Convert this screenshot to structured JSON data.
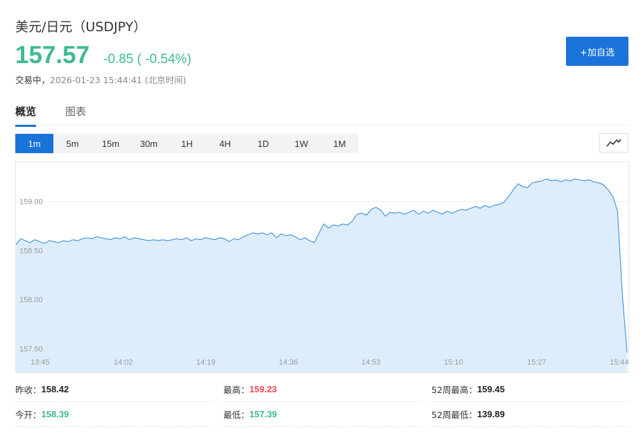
{
  "header": {
    "title": "美元/日元（USDJPY）",
    "price": "157.57",
    "change": "-0.85 ( -0.54%)",
    "status_label": "交易中，",
    "timestamp": "2026-01-23 15:44:41 (北京时间)",
    "add_button": "+加自选"
  },
  "tabs": [
    {
      "label": "概览",
      "active": true
    },
    {
      "label": "图表",
      "active": false
    }
  ],
  "periods": [
    {
      "label": "1m",
      "active": true
    },
    {
      "label": "5m",
      "active": false
    },
    {
      "label": "15m",
      "active": false
    },
    {
      "label": "30m",
      "active": false
    },
    {
      "label": "1H",
      "active": false
    },
    {
      "label": "4H",
      "active": false
    },
    {
      "label": "1D",
      "active": false
    },
    {
      "label": "1W",
      "active": false
    },
    {
      "label": "1M",
      "active": false
    }
  ],
  "chart_type_icon": "line-chart-icon",
  "colors": {
    "up": "#f0494d",
    "down": "#3dbb8c",
    "accent": "#1a73d9",
    "line": "#3b8fd9",
    "fill": "#deedfb"
  },
  "chart_data": {
    "type": "area",
    "y_ticks": [
      "159.00",
      "158.50",
      "158.00",
      "157.50"
    ],
    "y_tick_values": [
      159.0,
      158.5,
      158.0,
      157.5
    ],
    "x_ticks": [
      "13:45",
      "14:02",
      "14:19",
      "14:36",
      "14:53",
      "15:10",
      "15:27",
      "15:44"
    ],
    "ylim": [
      157.4,
      159.4
    ],
    "grid": true,
    "series": [
      {
        "values": [
          158.56,
          158.62,
          158.6,
          158.58,
          158.61,
          158.59,
          158.57,
          158.6,
          158.59,
          158.58,
          158.6,
          158.59,
          158.61,
          158.6,
          158.62,
          158.63,
          158.62,
          158.64,
          158.63,
          158.62,
          158.61,
          158.63,
          158.62,
          158.64,
          158.61,
          158.63,
          158.62,
          158.61,
          158.6,
          158.61,
          158.6,
          158.61,
          158.6,
          158.61,
          158.62,
          158.61,
          158.63,
          158.6,
          158.62,
          158.61,
          158.63,
          158.62,
          158.61,
          158.63,
          158.62,
          158.59,
          158.62,
          158.61,
          158.64,
          158.66,
          158.68,
          158.67,
          158.68,
          158.66,
          158.68,
          158.63,
          158.67,
          158.65,
          158.66,
          158.64,
          158.61,
          158.63,
          158.6,
          158.58,
          158.68,
          158.77,
          158.73,
          158.76,
          158.75,
          158.77,
          158.76,
          158.8,
          158.87,
          158.88,
          158.86,
          158.92,
          158.94,
          158.91,
          158.85,
          158.89,
          158.88,
          158.89,
          158.87,
          158.89,
          158.91,
          158.87,
          158.9,
          158.88,
          158.91,
          158.89,
          158.87,
          158.9,
          158.88,
          158.9,
          158.92,
          158.91,
          158.93,
          158.95,
          158.93,
          158.96,
          158.94,
          158.96,
          158.97,
          158.99,
          159.05,
          159.12,
          159.18,
          159.15,
          159.14,
          159.19,
          159.2,
          159.21,
          159.23,
          159.21,
          159.22,
          159.2,
          159.22,
          159.21,
          159.23,
          159.22,
          159.21,
          159.22,
          159.2,
          159.19,
          159.17,
          159.12,
          159.05,
          158.9,
          158.05,
          157.46
        ]
      }
    ]
  },
  "stats": [
    {
      "label": "昨收：",
      "value": "158.42",
      "tone": "neutral"
    },
    {
      "label": "最高：",
      "value": "159.23",
      "tone": "up"
    },
    {
      "label": "52周最高：",
      "value": "159.45",
      "tone": "neutral"
    },
    {
      "label": "今开：",
      "value": "158.39",
      "tone": "down"
    },
    {
      "label": "最低：",
      "value": "157.39",
      "tone": "down"
    },
    {
      "label": "52周最低：",
      "value": "139.89",
      "tone": "neutral"
    }
  ]
}
